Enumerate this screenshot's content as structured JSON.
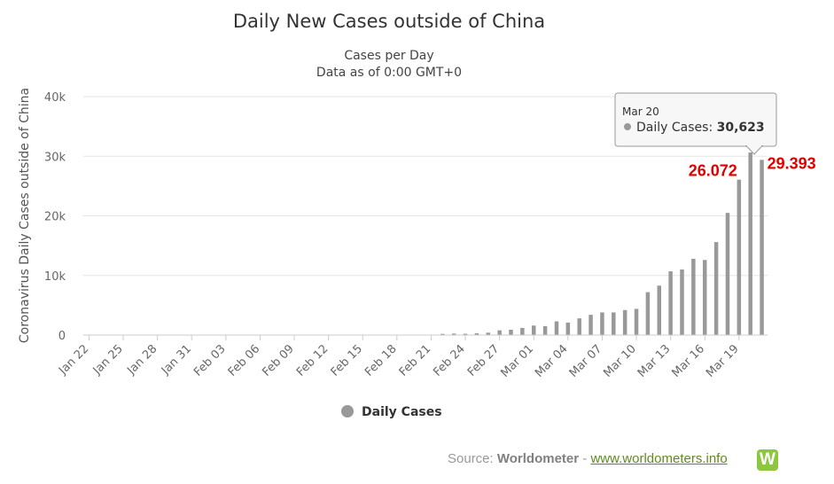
{
  "chart_data": {
    "type": "bar",
    "title": "Daily New Cases outside of China",
    "subtitle": [
      "Cases per Day",
      "Data as of 0:00 GMT+0"
    ],
    "ylabel": "Coronavirus Daily Cases outside of China",
    "xlabel": "",
    "ylim": [
      0,
      40000
    ],
    "yticks": [
      0,
      10000,
      20000,
      30000,
      40000
    ],
    "ytick_labels": [
      "0",
      "10k",
      "20k",
      "30k",
      "40k"
    ],
    "grid": true,
    "legend_position": "bottom-center",
    "categories": [
      "Jan 22",
      "Jan 23",
      "Jan 24",
      "Jan 25",
      "Jan 26",
      "Jan 27",
      "Jan 28",
      "Jan 29",
      "Jan 30",
      "Jan 31",
      "Feb 01",
      "Feb 02",
      "Feb 03",
      "Feb 04",
      "Feb 05",
      "Feb 06",
      "Feb 07",
      "Feb 08",
      "Feb 09",
      "Feb 10",
      "Feb 11",
      "Feb 12",
      "Feb 13",
      "Feb 14",
      "Feb 15",
      "Feb 16",
      "Feb 17",
      "Feb 18",
      "Feb 19",
      "Feb 20",
      "Feb 21",
      "Feb 22",
      "Feb 23",
      "Feb 24",
      "Feb 25",
      "Feb 26",
      "Feb 27",
      "Feb 28",
      "Feb 29",
      "Mar 01",
      "Mar 02",
      "Mar 03",
      "Mar 04",
      "Mar 05",
      "Mar 06",
      "Mar 07",
      "Mar 08",
      "Mar 09",
      "Mar 10",
      "Mar 11",
      "Mar 12",
      "Mar 13",
      "Mar 14",
      "Mar 15",
      "Mar 16",
      "Mar 17",
      "Mar 18",
      "Mar 19",
      "Mar 20",
      "Mar 21"
    ],
    "xtick_labels": [
      "Jan 22",
      "Jan 25",
      "Jan 28",
      "Jan 31",
      "Feb 03",
      "Feb 06",
      "Feb 09",
      "Feb 12",
      "Feb 15",
      "Feb 18",
      "Feb 21",
      "Feb 24",
      "Feb 27",
      "Mar 01",
      "Mar 04",
      "Mar 07",
      "Mar 10",
      "Mar 13",
      "Mar 16",
      "Mar 19"
    ],
    "series": [
      {
        "name": "Daily Cases",
        "color": "#999999",
        "values": [
          0,
          0,
          10,
          10,
          20,
          20,
          20,
          20,
          30,
          20,
          20,
          20,
          20,
          30,
          30,
          30,
          30,
          30,
          30,
          30,
          20,
          20,
          30,
          20,
          20,
          20,
          20,
          20,
          20,
          30,
          40,
          200,
          250,
          220,
          300,
          400,
          800,
          900,
          1200,
          1600,
          1500,
          2300,
          2100,
          2800,
          3400,
          3800,
          3800,
          4200,
          4400,
          7200,
          8300,
          10700,
          11000,
          12800,
          12600,
          15600,
          20500,
          26072,
          30623,
          29393
        ]
      }
    ],
    "tooltip": {
      "date": "Mar 20",
      "label": "Daily Cases",
      "value": "30,623"
    },
    "annotations": [
      {
        "text": "26.072",
        "category": "Mar 19",
        "value": 26072
      },
      {
        "text": "29.393",
        "category": "Mar 21",
        "value": 29393
      }
    ]
  },
  "source": {
    "prefix": "Source:",
    "brand": "Worldometer",
    "separator": "-",
    "link": "www.worldometers.info",
    "logo_letter": "W"
  }
}
